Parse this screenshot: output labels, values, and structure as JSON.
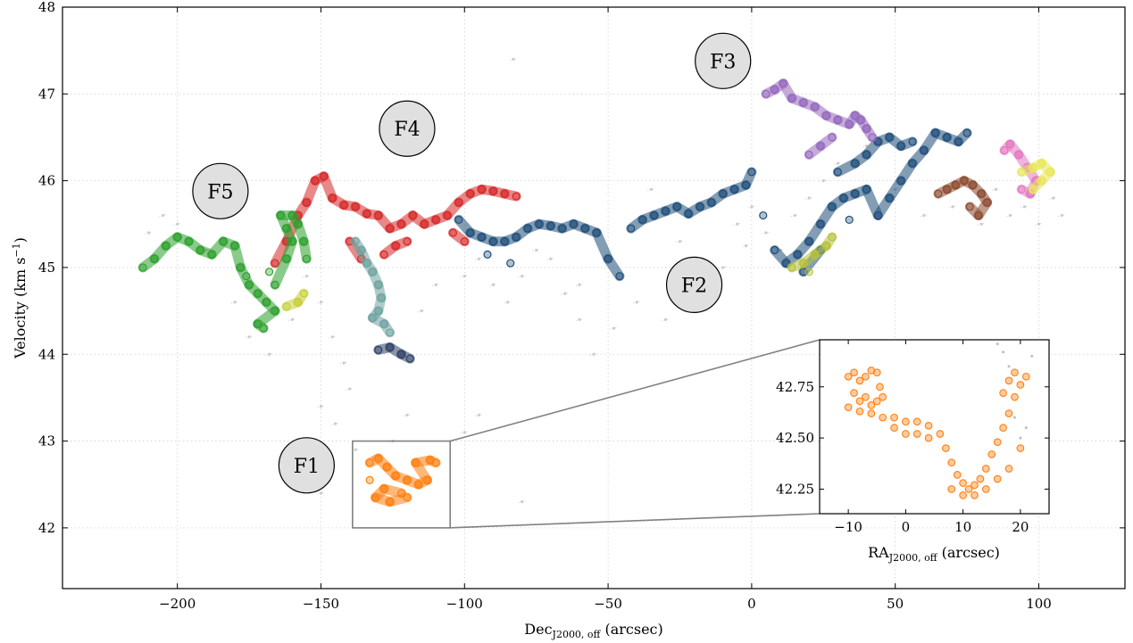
{
  "chart_data": {
    "type": "scatter",
    "xlabel": "Dec",
    "xlabel_sub": "J2000, off",
    "xlabel_unit": " (arcsec)",
    "ylabel": "Velocity (km s",
    "ylabel_sup": "−1",
    "ylabel_end": ")",
    "xlim": [
      -240,
      130
    ],
    "ylim": [
      41.3,
      48
    ],
    "xticks": [
      -200,
      -150,
      -100,
      -50,
      0,
      50,
      100
    ],
    "xtick_labels": [
      "−200",
      "−150",
      "−100",
      "−50",
      "0",
      "50",
      "100"
    ],
    "yticks": [
      42,
      43,
      44,
      45,
      46,
      47,
      48
    ],
    "ytick_labels": [
      "42",
      "43",
      "44",
      "45",
      "46",
      "47",
      "48"
    ],
    "grid": true,
    "annotations": [
      {
        "text": "F1",
        "x": -155,
        "y": 42.72
      },
      {
        "text": "F2",
        "x": -20,
        "y": 44.8
      },
      {
        "text": "F3",
        "x": -10,
        "y": 47.38
      },
      {
        "text": "F4",
        "x": -120,
        "y": 46.6
      },
      {
        "text": "F5",
        "x": -185,
        "y": 45.88
      }
    ],
    "series": [
      {
        "color": "#d62728",
        "points": [
          [
            -166,
            45.05
          ],
          [
            -162,
            45.3
          ],
          [
            -158,
            45.6
          ],
          [
            -155,
            45.75
          ],
          [
            -152,
            46.0
          ],
          [
            -149,
            46.05
          ],
          [
            -146,
            45.8
          ],
          [
            -142,
            45.72
          ],
          [
            -138,
            45.7
          ],
          [
            -134,
            45.62
          ],
          [
            -130,
            45.6
          ],
          [
            -126,
            45.45
          ],
          [
            -122,
            45.5
          ],
          [
            -118,
            45.6
          ],
          [
            -114,
            45.5
          ],
          [
            -110,
            45.55
          ],
          [
            -106,
            45.6
          ],
          [
            -102,
            45.75
          ],
          [
            -98,
            45.85
          ],
          [
            -94,
            45.9
          ],
          [
            -90,
            45.88
          ],
          [
            -86,
            45.85
          ],
          [
            -82,
            45.82
          ],
          [
            -128,
            45.15
          ],
          [
            -124,
            45.25
          ],
          [
            -120,
            45.3
          ],
          [
            -104,
            45.4
          ],
          [
            -100,
            45.3
          ],
          [
            -140,
            45.3
          ],
          [
            -136,
            45.1
          ]
        ]
      },
      {
        "color": "#1f4e79",
        "points": [
          [
            -102,
            45.55
          ],
          [
            -98,
            45.4
          ],
          [
            -94,
            45.35
          ],
          [
            -90,
            45.3
          ],
          [
            -86,
            45.3
          ],
          [
            -82,
            45.35
          ],
          [
            -78,
            45.45
          ],
          [
            -74,
            45.5
          ],
          [
            -70,
            45.48
          ],
          [
            -66,
            45.45
          ],
          [
            -62,
            45.5
          ],
          [
            -58,
            45.45
          ],
          [
            -54,
            45.4
          ],
          [
            -50,
            45.1
          ],
          [
            -46,
            44.9
          ],
          [
            -42,
            45.45
          ],
          [
            -38,
            45.55
          ],
          [
            -34,
            45.6
          ],
          [
            -30,
            45.65
          ],
          [
            -26,
            45.7
          ],
          [
            -22,
            45.62
          ],
          [
            -18,
            45.7
          ],
          [
            -14,
            45.75
          ],
          [
            -10,
            45.85
          ],
          [
            -6,
            45.9
          ],
          [
            -2,
            45.95
          ],
          [
            0,
            46.1
          ],
          [
            4,
            45.6
          ],
          [
            8,
            45.2
          ],
          [
            12,
            45.05
          ],
          [
            16,
            45.15
          ],
          [
            20,
            45.3
          ],
          [
            24,
            45.5
          ],
          [
            28,
            45.7
          ],
          [
            32,
            45.8
          ],
          [
            36,
            45.85
          ],
          [
            40,
            45.9
          ],
          [
            44,
            45.6
          ],
          [
            48,
            45.8
          ],
          [
            52,
            46.0
          ],
          [
            56,
            46.2
          ],
          [
            60,
            46.35
          ],
          [
            64,
            46.55
          ],
          [
            68,
            46.5
          ],
          [
            72,
            46.45
          ],
          [
            75,
            46.55
          ],
          [
            30,
            46.1
          ],
          [
            36,
            46.2
          ],
          [
            40,
            46.3
          ],
          [
            44,
            46.45
          ],
          [
            48,
            46.5
          ],
          [
            52,
            46.4
          ],
          [
            56,
            46.45
          ],
          [
            34,
            45.55
          ],
          [
            24,
            45.2
          ],
          [
            18,
            44.95
          ],
          [
            -84,
            45.05
          ],
          [
            -92,
            45.15
          ]
        ]
      },
      {
        "color": "#2ca02c",
        "points": [
          [
            -212,
            45.0
          ],
          [
            -208,
            45.1
          ],
          [
            -204,
            45.25
          ],
          [
            -200,
            45.35
          ],
          [
            -196,
            45.3
          ],
          [
            -192,
            45.2
          ],
          [
            -188,
            45.15
          ],
          [
            -184,
            45.3
          ],
          [
            -180,
            45.25
          ],
          [
            -178,
            45.0
          ],
          [
            -175,
            44.8
          ],
          [
            -172,
            44.7
          ],
          [
            -169,
            44.6
          ],
          [
            -166,
            44.5
          ],
          [
            -172,
            44.35
          ],
          [
            -170,
            44.3
          ],
          [
            -166,
            44.8
          ],
          [
            -162,
            45.1
          ],
          [
            -160,
            45.3
          ],
          [
            -162,
            45.45
          ],
          [
            -164,
            45.6
          ],
          [
            -160,
            45.6
          ],
          [
            -158,
            45.5
          ],
          [
            -156,
            45.3
          ],
          [
            -155,
            45.1
          ],
          [
            -168,
            44.95
          ],
          [
            -176,
            44.9
          ]
        ]
      },
      {
        "color": "#6fa3a0",
        "points": [
          [
            -138,
            45.3
          ],
          [
            -136,
            45.2
          ],
          [
            -134,
            45.05
          ],
          [
            -132,
            44.95
          ],
          [
            -130,
            44.8
          ],
          [
            -129,
            44.65
          ],
          [
            -130,
            44.5
          ],
          [
            -132,
            44.42
          ],
          [
            -128,
            44.35
          ],
          [
            -126,
            44.25
          ]
        ]
      },
      {
        "color": "#2e3f66",
        "points": [
          [
            -130,
            44.05
          ],
          [
            -126,
            44.08
          ],
          [
            -122,
            44.0
          ],
          [
            -119,
            43.95
          ]
        ]
      },
      {
        "color": "#ff7f0e",
        "points": [
          [
            -133,
            42.75
          ],
          [
            -130,
            42.8
          ],
          [
            -127,
            42.7
          ],
          [
            -124,
            42.6
          ],
          [
            -120,
            42.55
          ],
          [
            -116,
            42.5
          ],
          [
            -113,
            42.55
          ],
          [
            -117,
            42.75
          ],
          [
            -112,
            42.78
          ],
          [
            -110,
            42.75
          ],
          [
            -120,
            42.35
          ],
          [
            -126,
            42.3
          ],
          [
            -131,
            42.35
          ],
          [
            -128,
            42.45
          ],
          [
            -122,
            42.4
          ],
          [
            -133,
            42.55
          ]
        ]
      },
      {
        "color": "#9467bd",
        "points": [
          [
            5,
            47.0
          ],
          [
            8,
            47.05
          ],
          [
            11,
            47.12
          ],
          [
            14,
            46.95
          ],
          [
            18,
            46.9
          ],
          [
            22,
            46.85
          ],
          [
            26,
            46.75
          ],
          [
            30,
            46.7
          ],
          [
            34,
            46.65
          ],
          [
            36,
            46.75
          ],
          [
            38,
            46.7
          ],
          [
            40,
            46.6
          ],
          [
            42,
            46.5
          ],
          [
            28,
            46.5
          ],
          [
            24,
            46.4
          ],
          [
            20,
            46.3
          ]
        ]
      },
      {
        "color": "#8c4a2f",
        "points": [
          [
            65,
            45.85
          ],
          [
            68,
            45.9
          ],
          [
            71,
            45.95
          ],
          [
            74,
            46.0
          ],
          [
            77,
            45.95
          ],
          [
            80,
            45.85
          ],
          [
            82,
            45.75
          ],
          [
            79,
            45.6
          ],
          [
            76,
            45.7
          ]
        ]
      },
      {
        "color": "#e377c2",
        "points": [
          [
            88,
            46.35
          ],
          [
            90,
            46.42
          ],
          [
            93,
            46.3
          ],
          [
            96,
            46.15
          ],
          [
            99,
            46.0
          ],
          [
            97,
            45.85
          ],
          [
            94,
            45.9
          ]
        ]
      },
      {
        "color": "#e8e85a",
        "points": [
          [
            94,
            46.1
          ],
          [
            98,
            46.15
          ],
          [
            101,
            46.2
          ],
          [
            104,
            46.1
          ],
          [
            101,
            46.0
          ],
          [
            98,
            45.9
          ]
        ]
      },
      {
        "color": "#b5c13b",
        "points": [
          [
            14,
            45.0
          ],
          [
            18,
            45.05
          ],
          [
            22,
            45.15
          ],
          [
            26,
            45.25
          ],
          [
            28,
            45.35
          ],
          [
            20,
            44.95
          ]
        ]
      },
      {
        "color": "#c6cf35",
        "points": [
          [
            -162,
            44.55
          ],
          [
            -158,
            44.6
          ],
          [
            -156,
            44.7
          ]
        ]
      }
    ],
    "background_points": [
      [
        -210,
        45.4
      ],
      [
        -205,
        45.6
      ],
      [
        -200,
        45.5
      ],
      [
        -190,
        45.2
      ],
      [
        -180,
        44.6
      ],
      [
        -175,
        44.2
      ],
      [
        -168,
        44.0
      ],
      [
        -160,
        44.4
      ],
      [
        -155,
        44.9
      ],
      [
        -150,
        44.6
      ],
      [
        -146,
        44.2
      ],
      [
        -142,
        43.9
      ],
      [
        -140,
        43.6
      ],
      [
        -145,
        43.2
      ],
      [
        -150,
        43.4
      ],
      [
        -138,
        42.9
      ],
      [
        -132,
        42.8
      ],
      [
        -125,
        43.0
      ],
      [
        -120,
        43.3
      ],
      [
        -115,
        44.5
      ],
      [
        -110,
        44.8
      ],
      [
        -100,
        44.9
      ],
      [
        -95,
        45.1
      ],
      [
        -90,
        44.8
      ],
      [
        -85,
        44.6
      ],
      [
        -80,
        44.9
      ],
      [
        -75,
        45.2
      ],
      [
        -70,
        45.1
      ],
      [
        -65,
        44.7
      ],
      [
        -60,
        44.4
      ],
      [
        -55,
        44.0
      ],
      [
        -48,
        44.3
      ],
      [
        -40,
        44.6
      ],
      [
        -30,
        44.4
      ],
      [
        -20,
        44.9
      ],
      [
        -10,
        45.0
      ],
      [
        -5,
        45.5
      ],
      [
        0,
        45.7
      ],
      [
        5,
        45.4
      ],
      [
        10,
        45.2
      ],
      [
        15,
        45.6
      ],
      [
        20,
        45.8
      ],
      [
        25,
        46.0
      ],
      [
        30,
        46.2
      ],
      [
        40,
        46.4
      ],
      [
        50,
        45.9
      ],
      [
        60,
        45.6
      ],
      [
        70,
        45.7
      ],
      [
        80,
        45.5
      ],
      [
        85,
        45.9
      ],
      [
        90,
        45.6
      ],
      [
        95,
        45.7
      ],
      [
        100,
        45.5
      ],
      [
        105,
        45.8
      ],
      [
        108,
        45.6
      ],
      [
        -100,
        43.1
      ],
      [
        -95,
        43.3
      ],
      [
        -80,
        42.3
      ],
      [
        -60,
        44.8
      ],
      [
        -35,
        45.9
      ],
      [
        -25,
        45.3
      ],
      [
        -2,
        45.25
      ],
      [
        -83,
        47.4
      ],
      [
        -150,
        42.4
      ]
    ],
    "inset": {
      "xlabel": "RA",
      "xlabel_sub": "J2000, off",
      "xlabel_unit": " (arcsec)",
      "xlim": [
        -15,
        25
      ],
      "ylim": [
        42.13,
        42.98
      ],
      "xticks": [
        -10,
        0,
        10,
        20
      ],
      "xtick_labels": [
        "−10",
        "0",
        "10",
        "20"
      ],
      "yticks": [
        42.25,
        42.5,
        42.75
      ],
      "ytick_labels": [
        "42.25",
        "42.50",
        "42.75"
      ],
      "color": "#ff7f0e",
      "points": [
        [
          -10,
          42.8
        ],
        [
          -9,
          42.82
        ],
        [
          -8,
          42.78
        ],
        [
          -7,
          42.8
        ],
        [
          -6,
          42.83
        ],
        [
          -5,
          42.82
        ],
        [
          -4.5,
          42.75
        ],
        [
          -9,
          42.72
        ],
        [
          -8,
          42.68
        ],
        [
          -7,
          42.7
        ],
        [
          -6,
          42.66
        ],
        [
          -5,
          42.68
        ],
        [
          -4,
          42.7
        ],
        [
          -10,
          42.65
        ],
        [
          -8,
          42.63
        ],
        [
          -6,
          42.62
        ],
        [
          -4,
          42.6
        ],
        [
          -2,
          42.6
        ],
        [
          0,
          42.58
        ],
        [
          2,
          42.58
        ],
        [
          4,
          42.56
        ],
        [
          6,
          42.52
        ],
        [
          7,
          42.45
        ],
        [
          8,
          42.38
        ],
        [
          9,
          42.32
        ],
        [
          10,
          42.28
        ],
        [
          11,
          42.25
        ],
        [
          12,
          42.27
        ],
        [
          13,
          42.3
        ],
        [
          14,
          42.35
        ],
        [
          15,
          42.42
        ],
        [
          16,
          42.48
        ],
        [
          17,
          42.55
        ],
        [
          18,
          42.62
        ],
        [
          19,
          42.7
        ],
        [
          20,
          42.76
        ],
        [
          21,
          42.8
        ],
        [
          -2,
          42.55
        ],
        [
          0,
          42.52
        ],
        [
          2,
          42.52
        ],
        [
          4,
          42.5
        ],
        [
          8,
          42.25
        ],
        [
          10,
          42.22
        ],
        [
          12,
          42.22
        ],
        [
          14,
          42.25
        ],
        [
          16,
          42.3
        ],
        [
          18,
          42.35
        ],
        [
          20,
          42.45
        ],
        [
          17,
          42.72
        ],
        [
          18,
          42.78
        ],
        [
          19,
          42.82
        ]
      ],
      "bg_points": [
        [
          17,
          42.92
        ],
        [
          18,
          42.85
        ],
        [
          19,
          42.6
        ],
        [
          20,
          42.5
        ],
        [
          21,
          42.55
        ],
        [
          22,
          42.9
        ],
        [
          16,
          42.96
        ]
      ]
    }
  }
}
